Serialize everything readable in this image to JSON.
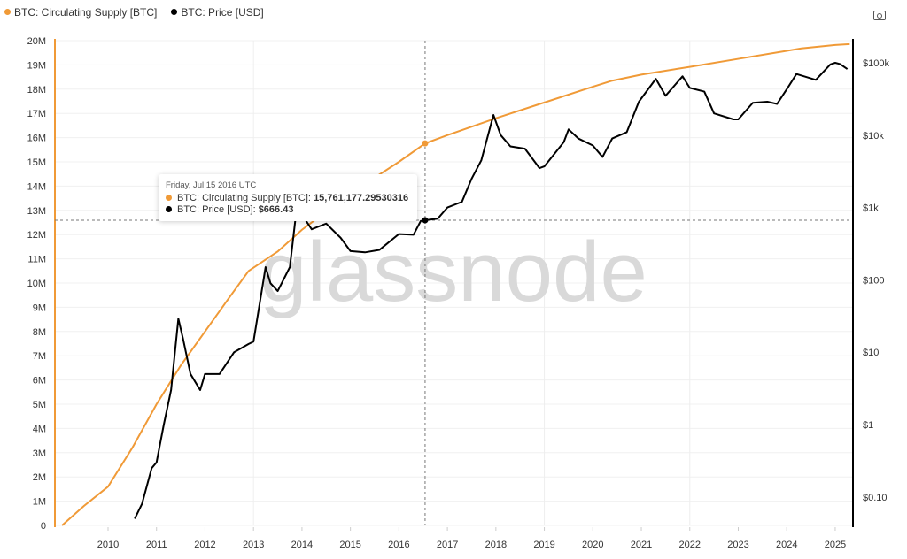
{
  "legend": {
    "supply": "BTC: Circulating Supply [BTC]",
    "price": "BTC: Price [USD]"
  },
  "colors": {
    "supply": "#f09a37",
    "price": "#000000"
  },
  "watermark": "glassnode",
  "tooltip": {
    "date": "Friday, Jul 15 2016 UTC",
    "supply_label": "BTC: Circulating Supply [BTC]: ",
    "supply_value": "15,761,177.29530316",
    "price_label": "BTC: Price [USD]: ",
    "price_value": "$666.43"
  },
  "chart_data": {
    "type": "line",
    "x_ticks": [
      "2010",
      "2011",
      "2012",
      "2013",
      "2014",
      "2015",
      "2016",
      "2017",
      "2018",
      "2019",
      "2020",
      "2021",
      "2022",
      "2023",
      "2024",
      "2025"
    ],
    "y_left_ticks": [
      "0",
      "1M",
      "2M",
      "3M",
      "4M",
      "5M",
      "6M",
      "7M",
      "8M",
      "9M",
      "10M",
      "11M",
      "12M",
      "13M",
      "14M",
      "15M",
      "16M",
      "17M",
      "18M",
      "19M",
      "20M"
    ],
    "y_left_range": [
      0,
      20000000
    ],
    "y_right_ticks": [
      "$0.10",
      "$1",
      "$10",
      "$100",
      "$1k",
      "$10k",
      "$100k"
    ],
    "y_right_scale": "log",
    "grid": true,
    "legend_position": "top-left",
    "series": [
      {
        "name": "BTC: Circulating Supply [BTC]",
        "axis": "left",
        "points": [
          [
            2009.05,
            0
          ],
          [
            2009.5,
            800000
          ],
          [
            2010,
            1600000
          ],
          [
            2010.5,
            3200000
          ],
          [
            2011,
            5000000
          ],
          [
            2011.5,
            6600000
          ],
          [
            2012,
            8000000
          ],
          [
            2012.5,
            9400000
          ],
          [
            2012.9,
            10500000
          ],
          [
            2013.5,
            11300000
          ],
          [
            2014,
            12200000
          ],
          [
            2014.5,
            12950000
          ],
          [
            2015,
            13700000
          ],
          [
            2015.5,
            14350000
          ],
          [
            2016,
            15000000
          ],
          [
            2016.54,
            15761177
          ],
          [
            2017,
            16100000
          ],
          [
            2018,
            16800000
          ],
          [
            2019,
            17450000
          ],
          [
            2020,
            18100000
          ],
          [
            2020.4,
            18350000
          ],
          [
            2021,
            18600000
          ],
          [
            2022,
            18920000
          ],
          [
            2023,
            19250000
          ],
          [
            2024,
            19580000
          ],
          [
            2024.3,
            19680000
          ],
          [
            2025,
            19820000
          ],
          [
            2025.3,
            19860000
          ]
        ]
      },
      {
        "name": "BTC: Price [USD]",
        "axis": "right",
        "points": [
          [
            2010.55,
            0.05
          ],
          [
            2010.7,
            0.08
          ],
          [
            2010.9,
            0.25
          ],
          [
            2011.0,
            0.3
          ],
          [
            2011.15,
            1
          ],
          [
            2011.3,
            3
          ],
          [
            2011.45,
            29
          ],
          [
            2011.55,
            15
          ],
          [
            2011.7,
            5
          ],
          [
            2011.9,
            3
          ],
          [
            2012.0,
            5
          ],
          [
            2012.3,
            5
          ],
          [
            2012.6,
            10
          ],
          [
            2012.9,
            13
          ],
          [
            2013.0,
            14
          ],
          [
            2013.25,
            150
          ],
          [
            2013.35,
            90
          ],
          [
            2013.5,
            70
          ],
          [
            2013.75,
            150
          ],
          [
            2013.9,
            1100
          ],
          [
            2014.0,
            800
          ],
          [
            2014.2,
            500
          ],
          [
            2014.5,
            600
          ],
          [
            2014.8,
            380
          ],
          [
            2015.0,
            250
          ],
          [
            2015.3,
            240
          ],
          [
            2015.6,
            260
          ],
          [
            2015.9,
            380
          ],
          [
            2016.0,
            430
          ],
          [
            2016.3,
            420
          ],
          [
            2016.45,
            650
          ],
          [
            2016.54,
            666.43
          ],
          [
            2016.8,
            700
          ],
          [
            2017.0,
            1000
          ],
          [
            2017.3,
            1200
          ],
          [
            2017.5,
            2500
          ],
          [
            2017.7,
            4500
          ],
          [
            2017.95,
            19000
          ],
          [
            2018.1,
            10000
          ],
          [
            2018.3,
            7000
          ],
          [
            2018.6,
            6500
          ],
          [
            2018.9,
            3500
          ],
          [
            2019.0,
            3700
          ],
          [
            2019.4,
            8000
          ],
          [
            2019.5,
            12000
          ],
          [
            2019.7,
            9000
          ],
          [
            2020.0,
            7200
          ],
          [
            2020.2,
            5000
          ],
          [
            2020.4,
            9000
          ],
          [
            2020.7,
            11000
          ],
          [
            2020.95,
            29000
          ],
          [
            2021.3,
            60000
          ],
          [
            2021.5,
            35000
          ],
          [
            2021.85,
            65000
          ],
          [
            2022.0,
            45000
          ],
          [
            2022.3,
            40000
          ],
          [
            2022.5,
            20000
          ],
          [
            2022.9,
            16500
          ],
          [
            2023.0,
            16500
          ],
          [
            2023.3,
            28000
          ],
          [
            2023.6,
            29000
          ],
          [
            2023.8,
            27000
          ],
          [
            2024.0,
            43000
          ],
          [
            2024.2,
            70000
          ],
          [
            2024.6,
            58000
          ],
          [
            2024.9,
            95000
          ],
          [
            2025.0,
            100000
          ],
          [
            2025.1,
            96000
          ],
          [
            2025.25,
            82000
          ]
        ]
      }
    ],
    "highlight": {
      "x": 2016.54,
      "supply": 15761177.29530316,
      "price": 666.43
    }
  }
}
